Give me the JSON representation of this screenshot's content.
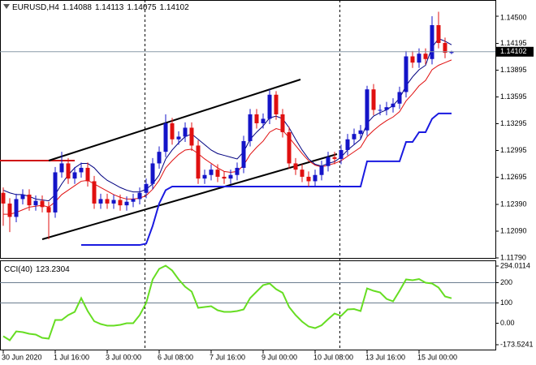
{
  "chart_data": [
    {
      "type": "candlestick",
      "title": "EURUSD,H4",
      "categories": [
        "30 Jun 2020",
        null,
        null,
        null,
        null,
        null,
        null,
        null,
        "1 Jul 16:00",
        null,
        null,
        null,
        null,
        null,
        null,
        null,
        "3 Jul 00:00",
        null,
        null,
        null,
        null,
        null,
        null,
        null,
        "6 Jul 08:00",
        null,
        null,
        null,
        null,
        null,
        null,
        null,
        "7 Jul 16:00",
        null,
        null,
        null,
        null,
        null,
        null,
        null,
        "9 Jul 00:00",
        null,
        null,
        null,
        null,
        null,
        null,
        null,
        "10 Jul 08:00",
        null,
        null,
        null,
        null,
        null,
        null,
        null,
        "13 Jul 16:00",
        null,
        null,
        null,
        null,
        null,
        null,
        null,
        "15 Jul 00:00",
        null,
        null,
        null,
        null,
        null
      ],
      "open": [
        1.1252,
        1.124,
        1.1225,
        1.1245,
        1.125,
        1.1238,
        1.1243,
        1.1236,
        1.123,
        1.1275,
        1.1285,
        1.1268,
        1.1275,
        1.128,
        1.1265,
        1.124,
        1.1245,
        1.124,
        1.1244,
        1.1238,
        1.1242,
        1.1245,
        1.1252,
        1.1262,
        1.1285,
        1.1298,
        1.133,
        1.1312,
        1.1315,
        1.1325,
        1.1305,
        1.1268,
        1.1272,
        1.1278,
        1.127,
        1.1268,
        1.1272,
        1.128,
        1.131,
        1.134,
        1.133,
        1.1335,
        1.1362,
        1.134,
        1.132,
        1.1285,
        1.1278,
        1.127,
        1.1265,
        1.1272,
        1.1282,
        1.1292,
        1.129,
        1.13,
        1.1312,
        1.1318,
        1.1322,
        1.1368,
        1.1345,
        1.1345,
        1.1348,
        1.1352,
        1.1365,
        1.1405,
        1.1398,
        1.1408,
        1.1402,
        1.144,
        1.142,
        1.14088
      ],
      "high": [
        1.1258,
        1.1246,
        1.1251,
        1.1256,
        1.1256,
        1.1249,
        1.1249,
        1.1242,
        1.1281,
        1.1298,
        1.1291,
        1.1281,
        1.1286,
        1.1286,
        1.1271,
        1.1251,
        1.1251,
        1.125,
        1.125,
        1.1248,
        1.1251,
        1.1258,
        1.1268,
        1.1291,
        1.1304,
        1.134,
        1.1336,
        1.1321,
        1.1331,
        1.1331,
        1.1311,
        1.1278,
        1.1284,
        1.1284,
        1.1276,
        1.1278,
        1.1286,
        1.1316,
        1.1346,
        1.1346,
        1.1341,
        1.1368,
        1.1366,
        1.1346,
        1.1326,
        1.1291,
        1.1284,
        1.1276,
        1.1278,
        1.1288,
        1.1298,
        1.1298,
        1.1306,
        1.1318,
        1.1324,
        1.1328,
        1.1372,
        1.1374,
        1.1351,
        1.1354,
        1.1358,
        1.1371,
        1.1411,
        1.1411,
        1.1414,
        1.1414,
        1.145,
        1.1455,
        1.1426,
        1.14113
      ],
      "low": [
        1.1215,
        1.1208,
        1.1219,
        1.1239,
        1.1232,
        1.1232,
        1.123,
        1.12,
        1.1224,
        1.1269,
        1.1262,
        1.1262,
        1.1269,
        1.1259,
        1.1234,
        1.1234,
        1.1234,
        1.1234,
        1.1232,
        1.1232,
        1.1236,
        1.1239,
        1.1246,
        1.1256,
        1.1279,
        1.1292,
        1.1306,
        1.1306,
        1.1309,
        1.1299,
        1.1262,
        1.1262,
        1.1266,
        1.1264,
        1.1262,
        1.1262,
        1.1266,
        1.1274,
        1.1304,
        1.1324,
        1.1324,
        1.1329,
        1.1334,
        1.1314,
        1.1279,
        1.1272,
        1.1264,
        1.1259,
        1.1259,
        1.1266,
        1.1276,
        1.1284,
        1.1284,
        1.1294,
        1.1306,
        1.1312,
        1.1316,
        1.1339,
        1.1339,
        1.1339,
        1.1342,
        1.1346,
        1.1359,
        1.1392,
        1.1392,
        1.1396,
        1.1396,
        1.1414,
        1.1403,
        1.14075
      ],
      "close": [
        1.124,
        1.1225,
        1.1245,
        1.125,
        1.1238,
        1.1243,
        1.1236,
        1.123,
        1.1275,
        1.1285,
        1.1268,
        1.1275,
        1.128,
        1.1265,
        1.124,
        1.1245,
        1.124,
        1.1244,
        1.1238,
        1.1242,
        1.1245,
        1.1252,
        1.1262,
        1.1285,
        1.1298,
        1.133,
        1.1312,
        1.1315,
        1.1325,
        1.1305,
        1.1268,
        1.1272,
        1.1278,
        1.127,
        1.1268,
        1.1272,
        1.128,
        1.131,
        1.134,
        1.133,
        1.1335,
        1.1362,
        1.134,
        1.132,
        1.1285,
        1.1278,
        1.127,
        1.1265,
        1.1272,
        1.1282,
        1.1292,
        1.129,
        1.13,
        1.1312,
        1.1318,
        1.1322,
        1.1368,
        1.1345,
        1.1345,
        1.1348,
        1.1352,
        1.1365,
        1.1405,
        1.1398,
        1.1408,
        1.1402,
        1.144,
        1.142,
        1.1409,
        1.14102
      ],
      "up_color": "#1414c8",
      "down_color": "#e01010",
      "series": [
        {
          "color": "#e01010",
          "width": 1,
          "values": [
            1.1228,
            1.1228,
            1.123,
            1.1233,
            1.1236,
            1.1237,
            1.1238,
            1.1236,
            1.1242,
            1.125,
            1.1255,
            1.126,
            1.1265,
            1.1266,
            1.1262,
            1.1258,
            1.1254,
            1.125,
            1.1247,
            1.1245,
            1.1245,
            1.1246,
            1.1249,
            1.1256,
            1.1266,
            1.128,
            1.1288,
            1.1295,
            1.13,
            1.1301,
            1.1296,
            1.129,
            1.1285,
            1.128,
            1.1276,
            1.1275,
            1.1276,
            1.1283,
            1.1295,
            1.1303,
            1.131,
            1.132,
            1.1324,
            1.1322,
            1.1314,
            1.1305,
            1.1296,
            1.1288,
            1.1283,
            1.1281,
            1.1283,
            1.1285,
            1.1288,
            1.1293,
            1.1298,
            1.1303,
            1.1315,
            1.1322,
            1.1328,
            1.1333,
            1.1337,
            1.1343,
            1.1355,
            1.1363,
            1.1372,
            1.1378,
            1.139,
            1.1395,
            1.1398,
            1.1401
          ]
        },
        {
          "color": "#000080",
          "width": 1,
          "values": [
            1.1255,
            1.1252,
            1.125,
            1.125,
            1.1248,
            1.1245,
            1.1244,
            1.1243,
            1.125,
            1.1262,
            1.1272,
            1.128,
            1.1285,
            1.1285,
            1.128,
            1.1272,
            1.1266,
            1.1262,
            1.1258,
            1.1255,
            1.1253,
            1.1253,
            1.1256,
            1.1262,
            1.1272,
            1.129,
            1.13,
            1.1308,
            1.1315,
            1.1318,
            1.1312,
            1.1306,
            1.13,
            1.1296,
            1.1294,
            1.1292,
            1.129,
            1.1298,
            1.1312,
            1.132,
            1.1327,
            1.1336,
            1.1338,
            1.1335,
            1.1325,
            1.1312,
            1.13,
            1.129,
            1.1284,
            1.1282,
            1.1285,
            1.1287,
            1.1292,
            1.13,
            1.1306,
            1.1312,
            1.133,
            1.1338,
            1.1342,
            1.1345,
            1.135,
            1.1358,
            1.1372,
            1.1382,
            1.139,
            1.1395,
            1.1415,
            1.1425,
            1.1422,
            1.1418
          ]
        },
        {
          "color": "#1a1ae0",
          "width": 2,
          "values": [
            null,
            null,
            null,
            null,
            null,
            null,
            null,
            null,
            null,
            null,
            null,
            null,
            1.11935,
            1.11935,
            1.11935,
            1.11935,
            1.11935,
            1.11935,
            1.11935,
            1.11935,
            1.11935,
            1.11935,
            1.1195,
            1.1215,
            1.124,
            1.1255,
            1.1259,
            1.1259,
            1.1259,
            1.1259,
            1.1259,
            1.1259,
            1.1259,
            1.1259,
            1.1259,
            1.1259,
            1.1259,
            1.1259,
            1.1259,
            1.1259,
            1.1259,
            1.1259,
            1.1259,
            1.1259,
            1.1259,
            1.1259,
            1.1259,
            1.1259,
            1.1259,
            1.1259,
            1.1259,
            1.1259,
            1.1259,
            1.1259,
            1.1259,
            1.1259,
            1.12873,
            1.12873,
            1.12873,
            1.12873,
            1.12873,
            1.12873,
            1.1309,
            1.1309,
            1.132,
            1.132,
            1.1335,
            1.1341,
            1.1341,
            1.1341
          ]
        }
      ],
      "ylim": [
        1.1179,
        1.14682
      ],
      "yticks": [
        {
          "value": 1.145,
          "label": "1.14500"
        },
        {
          "value": 1.14195,
          "label": "1.14195"
        },
        {
          "value": 1.13895,
          "label": "1.13895"
        },
        {
          "value": 1.13595,
          "label": "1.13595"
        },
        {
          "value": 1.13295,
          "label": "1.13295"
        },
        {
          "value": 1.12995,
          "label": "1.12995"
        },
        {
          "value": 1.12695,
          "label": "1.12695"
        },
        {
          "value": 1.1239,
          "label": "1.12390"
        },
        {
          "value": 1.1209,
          "label": "1.12090"
        },
        {
          "value": 1.1179,
          "label": "1.11790"
        }
      ]
    },
    {
      "type": "line",
      "title": "CCI(40)",
      "series": [
        {
          "color": "#66dd22",
          "values": [
            -64,
            -84,
            -40,
            -44,
            -52,
            -56,
            -72,
            -76,
            16,
            16,
            40,
            56,
            124,
            60,
            10,
            -4,
            -12,
            -12,
            -8,
            0,
            0,
            40,
            100,
            216,
            268,
            284,
            260,
            216,
            180,
            156,
            76,
            80,
            84,
            64,
            56,
            56,
            60,
            68,
            124,
            156,
            188,
            196,
            168,
            150,
            80,
            40,
            8,
            -16,
            -24,
            -10,
            20,
            48,
            36,
            68,
            70,
            60,
            172,
            160,
            152,
            120,
            108,
            160,
            216,
            212,
            218,
            200,
            196,
            176,
            132,
            123.2304
          ]
        }
      ],
      "ylim": [
        -173.5241,
        294.0114
      ],
      "yticks": [
        294.0114,
        200,
        100,
        {
          "value": 0,
          "label": "0.00"
        },
        -173.5241
      ],
      "levels": [
        200,
        100
      ]
    }
  ]
}
